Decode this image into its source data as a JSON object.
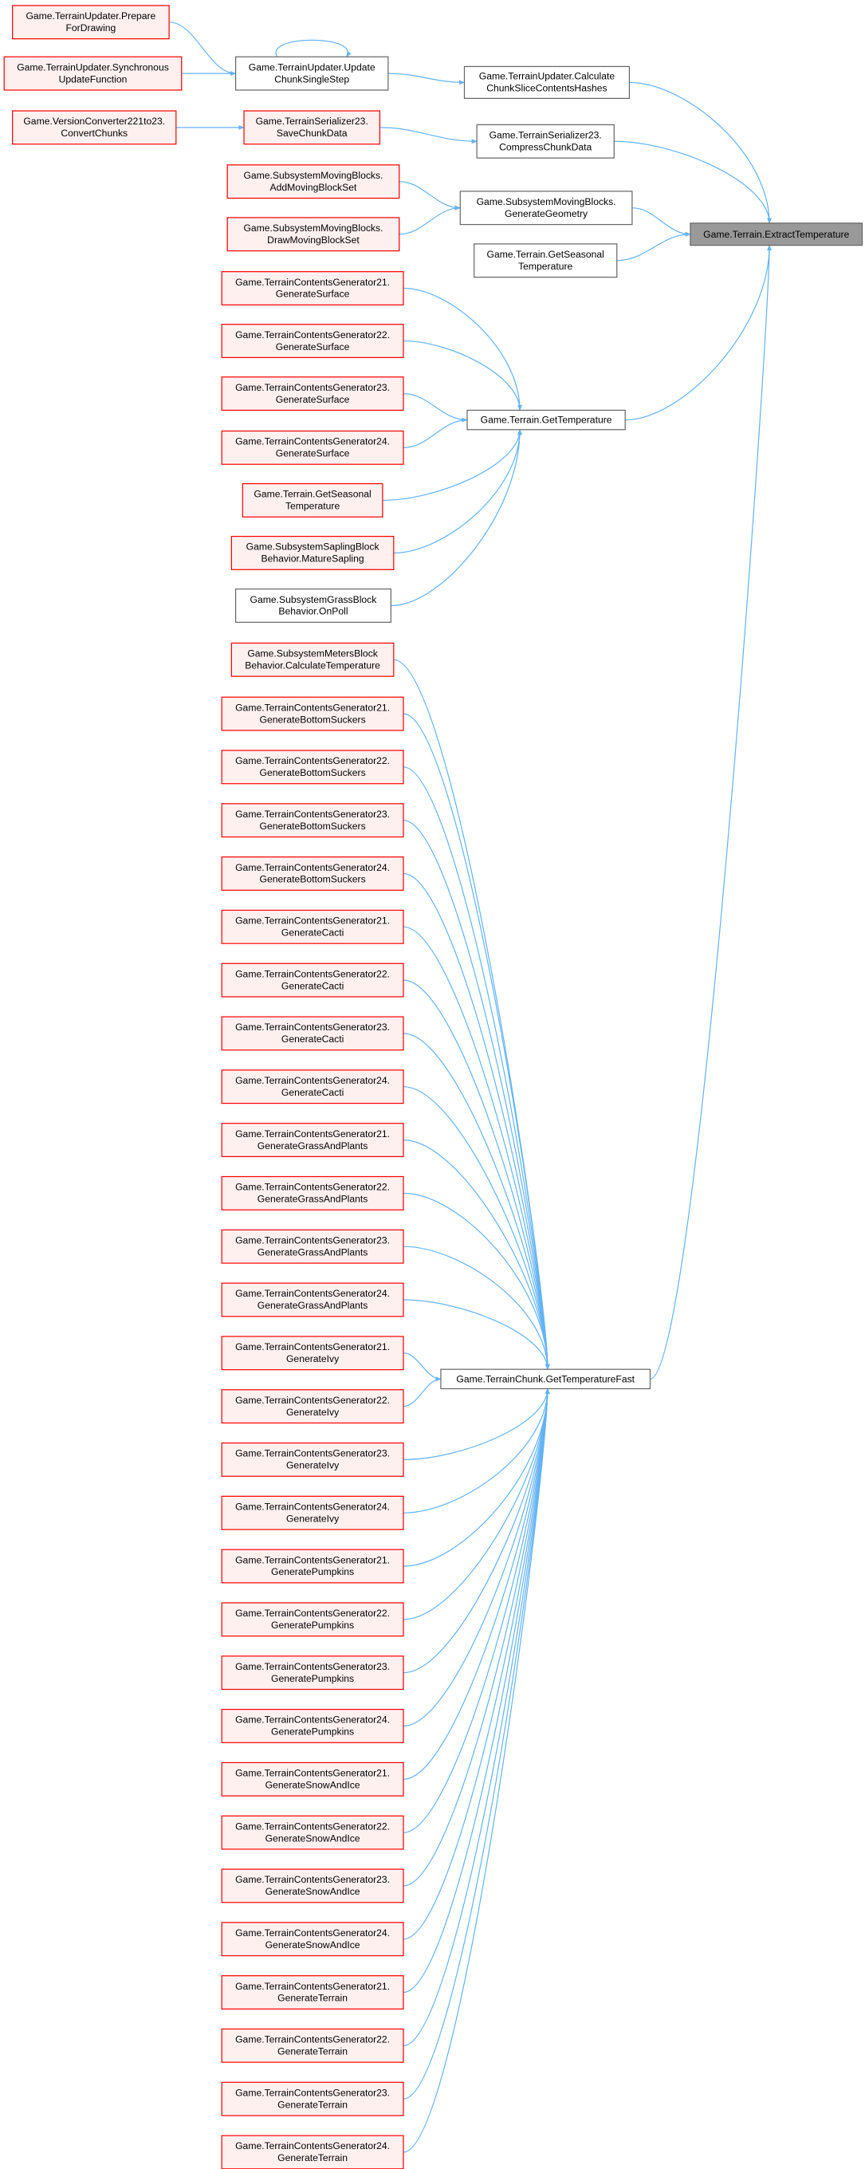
{
  "nodes": [
    {
      "lines": [
        "Game.Terrain.ExtractTemperature"
      ]
    },
    {
      "lines": [
        "Game.TerrainUpdater.Calculate",
        "ChunkSliceContentsHashes"
      ]
    },
    {
      "lines": [
        "Game.TerrainSerializer23.",
        "CompressChunkData"
      ]
    },
    {
      "lines": [
        "Game.SubsystemMovingBlocks.",
        "GenerateGeometry"
      ]
    },
    {
      "lines": [
        "Game.Terrain.GetSeasonal",
        "Temperature"
      ]
    },
    {
      "lines": [
        "Game.Terrain.GetTemperature"
      ]
    },
    {
      "lines": [
        "Game.TerrainChunk.GetTemperatureFast"
      ]
    },
    {
      "lines": [
        "Game.TerrainUpdater.Update",
        "ChunkSingleStep"
      ]
    },
    {
      "lines": [
        "Game.TerrainSerializer23.",
        "SaveChunkData"
      ]
    },
    {
      "lines": [
        "Game.TerrainUpdater.Prepare",
        "ForDrawing"
      ]
    },
    {
      "lines": [
        "Game.TerrainUpdater.Synchronous",
        "UpdateFunction"
      ]
    },
    {
      "lines": [
        "Game.VersionConverter221to23.",
        "ConvertChunks"
      ]
    },
    {
      "lines": [
        "Game.SubsystemMovingBlocks.",
        "AddMovingBlockSet"
      ]
    },
    {
      "lines": [
        "Game.SubsystemMovingBlocks.",
        "DrawMovingBlockSet"
      ]
    },
    {
      "lines": [
        "Game.TerrainContentsGenerator21.",
        "GenerateSurface"
      ]
    },
    {
      "lines": [
        "Game.TerrainContentsGenerator22.",
        "GenerateSurface"
      ]
    },
    {
      "lines": [
        "Game.TerrainContentsGenerator23.",
        "GenerateSurface"
      ]
    },
    {
      "lines": [
        "Game.TerrainContentsGenerator24.",
        "GenerateSurface"
      ]
    },
    {
      "lines": [
        "Game.Terrain.GetSeasonal",
        "Temperature"
      ]
    },
    {
      "lines": [
        "Game.SubsystemSaplingBlock",
        "Behavior.MatureSapling"
      ]
    },
    {
      "lines": [
        "Game.SubsystemGrassBlock",
        "Behavior.OnPoll"
      ]
    },
    {
      "lines": [
        "Game.SubsystemMetersBlock",
        "Behavior.CalculateTemperature"
      ]
    },
    {
      "lines": [
        "Game.TerrainContentsGenerator21.",
        "GenerateBottomSuckers"
      ]
    },
    {
      "lines": [
        "Game.TerrainContentsGenerator22.",
        "GenerateBottomSuckers"
      ]
    },
    {
      "lines": [
        "Game.TerrainContentsGenerator23.",
        "GenerateBottomSuckers"
      ]
    },
    {
      "lines": [
        "Game.TerrainContentsGenerator24.",
        "GenerateBottomSuckers"
      ]
    },
    {
      "lines": [
        "Game.TerrainContentsGenerator21.",
        "GenerateCacti"
      ]
    },
    {
      "lines": [
        "Game.TerrainContentsGenerator22.",
        "GenerateCacti"
      ]
    },
    {
      "lines": [
        "Game.TerrainContentsGenerator23.",
        "GenerateCacti"
      ]
    },
    {
      "lines": [
        "Game.TerrainContentsGenerator24.",
        "GenerateCacti"
      ]
    },
    {
      "lines": [
        "Game.TerrainContentsGenerator21.",
        "GenerateGrassAndPlants"
      ]
    },
    {
      "lines": [
        "Game.TerrainContentsGenerator22.",
        "GenerateGrassAndPlants"
      ]
    },
    {
      "lines": [
        "Game.TerrainContentsGenerator23.",
        "GenerateGrassAndPlants"
      ]
    },
    {
      "lines": [
        "Game.TerrainContentsGenerator24.",
        "GenerateGrassAndPlants"
      ]
    },
    {
      "lines": [
        "Game.TerrainContentsGenerator21.",
        "GenerateIvy"
      ]
    },
    {
      "lines": [
        "Game.TerrainContentsGenerator22.",
        "GenerateIvy"
      ]
    },
    {
      "lines": [
        "Game.TerrainContentsGenerator23.",
        "GenerateIvy"
      ]
    },
    {
      "lines": [
        "Game.TerrainContentsGenerator24.",
        "GenerateIvy"
      ]
    },
    {
      "lines": [
        "Game.TerrainContentsGenerator21.",
        "GeneratePumpkins"
      ]
    },
    {
      "lines": [
        "Game.TerrainContentsGenerator22.",
        "GeneratePumpkins"
      ]
    },
    {
      "lines": [
        "Game.TerrainContentsGenerator23.",
        "GeneratePumpkins"
      ]
    },
    {
      "lines": [
        "Game.TerrainContentsGenerator24.",
        "GeneratePumpkins"
      ]
    },
    {
      "lines": [
        "Game.TerrainContentsGenerator21.",
        "GenerateSnowAndIce"
      ]
    },
    {
      "lines": [
        "Game.TerrainContentsGenerator22.",
        "GenerateSnowAndIce"
      ]
    },
    {
      "lines": [
        "Game.TerrainContentsGenerator23.",
        "GenerateSnowAndIce"
      ]
    },
    {
      "lines": [
        "Game.TerrainContentsGenerator24.",
        "GenerateSnowAndIce"
      ]
    },
    {
      "lines": [
        "Game.TerrainContentsGenerator21.",
        "GenerateTerrain"
      ]
    },
    {
      "lines": [
        "Game.TerrainContentsGenerator22.",
        "GenerateTerrain"
      ]
    },
    {
      "lines": [
        "Game.TerrainContentsGenerator23.",
        "GenerateTerrain"
      ]
    },
    {
      "lines": [
        "Game.TerrainContentsGenerator24.",
        "GenerateTerrain"
      ]
    }
  ]
}
